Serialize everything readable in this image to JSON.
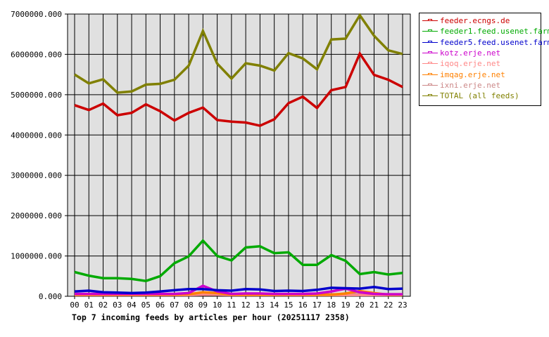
{
  "chart_data": {
    "type": "line",
    "title": "Top 7 incoming feeds by articles per hour (20251117 2358)",
    "xlabel": "",
    "ylabel": "",
    "ylim": [
      0,
      7000000
    ],
    "grid": true,
    "legend_position": "right",
    "y_ticks": [
      "0.000",
      "1000000.000",
      "2000000.000",
      "3000000.000",
      "4000000.000",
      "5000000.000",
      "6000000.000",
      "7000000.000"
    ],
    "categories": [
      "00",
      "01",
      "02",
      "03",
      "04",
      "05",
      "06",
      "07",
      "08",
      "09",
      "10",
      "11",
      "12",
      "13",
      "14",
      "15",
      "16",
      "17",
      "18",
      "19",
      "20",
      "21",
      "22",
      "23"
    ],
    "series": [
      {
        "name": "feeder.ecngs.de",
        "color": "#cc0000",
        "values": [
          4740000,
          4620000,
          4780000,
          4490000,
          4550000,
          4760000,
          4590000,
          4360000,
          4550000,
          4680000,
          4370000,
          4330000,
          4310000,
          4230000,
          4390000,
          4790000,
          4950000,
          4670000,
          5110000,
          5190000,
          6020000,
          5490000,
          5370000,
          5190000
        ]
      },
      {
        "name": "feeder1.feed.usenet.farm",
        "color": "#00aa00",
        "values": [
          600000,
          510000,
          450000,
          450000,
          430000,
          380000,
          500000,
          820000,
          990000,
          1380000,
          1000000,
          890000,
          1210000,
          1240000,
          1070000,
          1090000,
          780000,
          780000,
          1020000,
          880000,
          550000,
          600000,
          540000,
          580000
        ]
      },
      {
        "name": "feeder5.feed.usenet.farm",
        "color": "#0000cc",
        "values": [
          120000,
          140000,
          100000,
          90000,
          80000,
          90000,
          120000,
          150000,
          180000,
          180000,
          150000,
          140000,
          180000,
          170000,
          130000,
          140000,
          130000,
          160000,
          210000,
          200000,
          190000,
          230000,
          180000,
          190000
        ]
      },
      {
        "name": "kotz.erje.net",
        "color": "#cc00cc",
        "values": [
          60000,
          60000,
          60000,
          60000,
          60000,
          60000,
          60000,
          60000,
          80000,
          260000,
          120000,
          60000,
          70000,
          70000,
          60000,
          60000,
          60000,
          70000,
          120000,
          190000,
          100000,
          60000,
          50000,
          50000
        ]
      },
      {
        "name": "iqoq.erje.net",
        "color": "#ff8888",
        "values": [
          30000,
          30000,
          30000,
          30000,
          30000,
          30000,
          30000,
          30000,
          30000,
          40000,
          40000,
          30000,
          30000,
          30000,
          30000,
          30000,
          30000,
          30000,
          30000,
          30000,
          30000,
          30000,
          30000,
          30000
        ]
      },
      {
        "name": "imqag.erje.net",
        "color": "#ff8000",
        "values": [
          40000,
          40000,
          40000,
          40000,
          40000,
          40000,
          40000,
          40000,
          50000,
          100000,
          80000,
          40000,
          40000,
          40000,
          40000,
          40000,
          40000,
          40000,
          40000,
          70000,
          130000,
          80000,
          40000,
          40000
        ]
      },
      {
        "name": "ixni.erje.net",
        "color": "#cc8888",
        "values": [
          50000,
          50000,
          50000,
          50000,
          50000,
          50000,
          50000,
          50000,
          50000,
          50000,
          50000,
          50000,
          50000,
          50000,
          50000,
          50000,
          50000,
          50000,
          50000,
          50000,
          50000,
          50000,
          50000,
          50000
        ]
      },
      {
        "name": "TOTAL (all feeds)",
        "color": "#808000",
        "values": [
          5500000,
          5280000,
          5380000,
          5050000,
          5080000,
          5250000,
          5270000,
          5370000,
          5720000,
          6580000,
          5770000,
          5400000,
          5780000,
          5720000,
          5600000,
          6030000,
          5900000,
          5630000,
          6370000,
          6390000,
          6970000,
          6460000,
          6100000,
          6010000
        ]
      }
    ]
  },
  "legend": {
    "items": [
      {
        "label": "feeder.ecngs.de",
        "color": "#cc0000"
      },
      {
        "label": "feeder1.feed.usenet.farm",
        "color": "#00aa00"
      },
      {
        "label": "feeder5.feed.usenet.farm",
        "color": "#0000cc"
      },
      {
        "label": "kotz.erje.net",
        "color": "#cc00cc"
      },
      {
        "label": "iqoq.erje.net",
        "color": "#ff8888"
      },
      {
        "label": "imqag.erje.net",
        "color": "#ff8000"
      },
      {
        "label": "ixni.erje.net",
        "color": "#cc8888"
      },
      {
        "label": "TOTAL (all feeds)",
        "color": "#808000"
      }
    ]
  },
  "colors": {
    "plot_background": "#e0e0e0",
    "grid": "#000000"
  }
}
